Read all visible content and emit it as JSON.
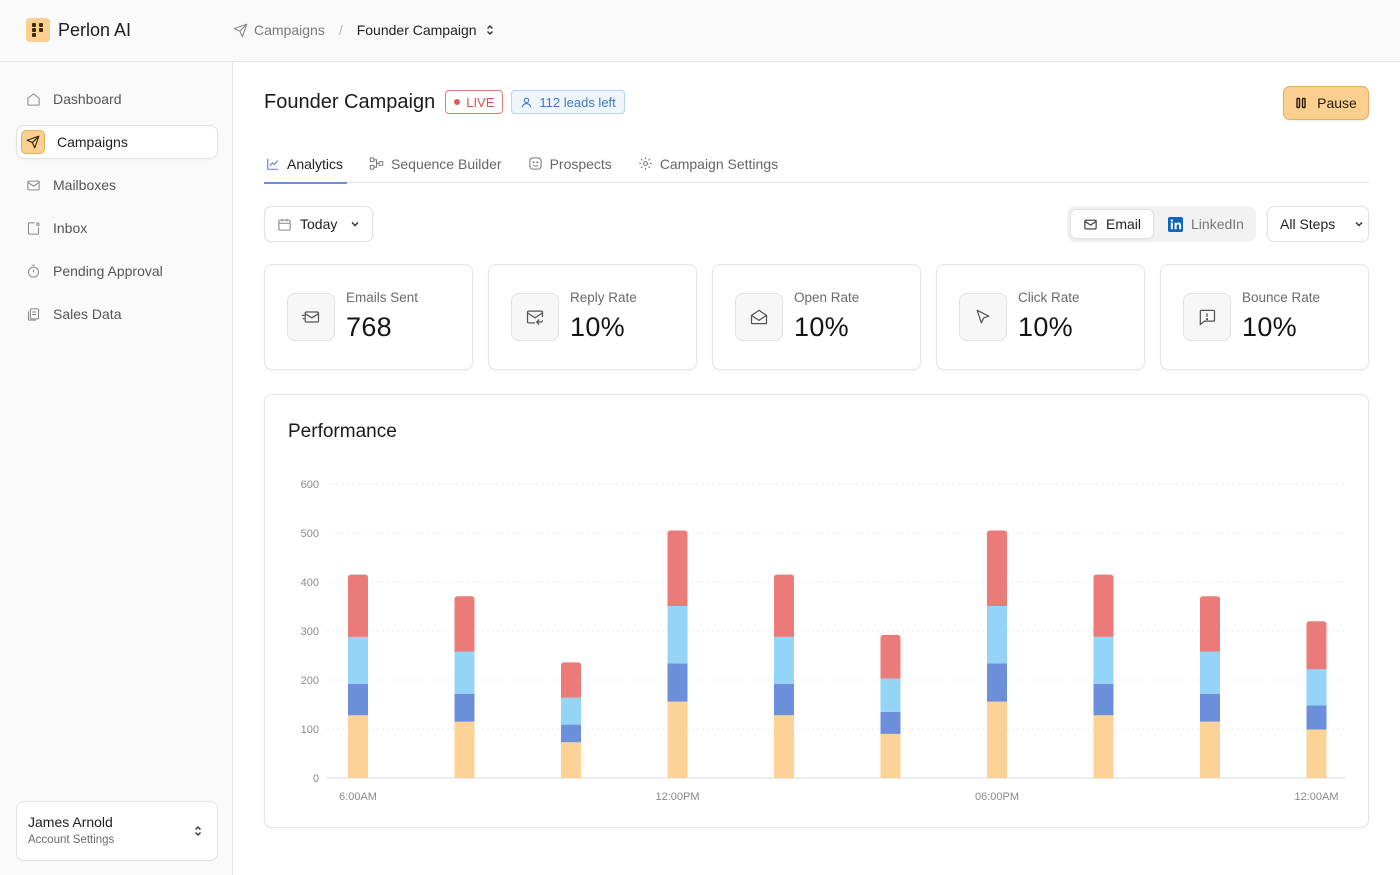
{
  "brand": {
    "name": "Perlon AI"
  },
  "breadcrumb": {
    "parent": "Campaigns",
    "separator": "/",
    "current": "Founder Campaign"
  },
  "sidebar": {
    "items": [
      {
        "label": "Dashboard",
        "icon": "home-icon"
      },
      {
        "label": "Campaigns",
        "icon": "send-icon",
        "active": true
      },
      {
        "label": "Mailboxes",
        "icon": "mail-icon"
      },
      {
        "label": "Inbox",
        "icon": "inbox-icon"
      },
      {
        "label": "Pending Approval",
        "icon": "timer-icon"
      },
      {
        "label": "Sales Data",
        "icon": "document-icon"
      }
    ],
    "account": {
      "name": "James Arnold",
      "subtitle": "Account Settings"
    }
  },
  "header": {
    "title": "Founder Campaign",
    "live_badge": "LIVE",
    "leads_badge": "112 leads left",
    "pause_label": "Pause"
  },
  "tabs": [
    {
      "label": "Analytics",
      "icon": "line-chart-icon",
      "active": true
    },
    {
      "label": "Sequence Builder",
      "icon": "flow-icon"
    },
    {
      "label": "Prospects",
      "icon": "smile-icon"
    },
    {
      "label": "Campaign Settings",
      "icon": "gear-icon"
    }
  ],
  "filters": {
    "date": "Today",
    "channels": [
      {
        "label": "Email",
        "active": true
      },
      {
        "label": "LinkedIn",
        "active": false
      }
    ],
    "steps": "All Steps"
  },
  "stats": [
    {
      "label": "Emails Sent",
      "value": "768",
      "icon": "mail-send-icon"
    },
    {
      "label": "Reply Rate",
      "value": "10%",
      "icon": "mail-reply-icon"
    },
    {
      "label": "Open Rate",
      "value": "10%",
      "icon": "mail-open-icon"
    },
    {
      "label": "Click Rate",
      "value": "10%",
      "icon": "cursor-icon"
    },
    {
      "label": "Bounce Rate",
      "value": "10%",
      "icon": "alert-message-icon"
    }
  ],
  "colors": {
    "accent": "#fbcf8f",
    "live": "#d9534f",
    "leads": "#3d78c2",
    "tab_underline": "#6c8ee0"
  },
  "chart_data": {
    "type": "bar",
    "stacked": true,
    "title": "Performance",
    "ylim": [
      0,
      600
    ],
    "yticks": [
      0,
      100,
      200,
      300,
      400,
      500,
      600
    ],
    "xtick_labels": [
      "6:00AM",
      "12:00PM",
      "06:00PM",
      "12:00AM"
    ],
    "xtick_index": [
      0,
      3,
      6,
      9
    ],
    "grid": true,
    "series": [
      {
        "color": "#fcd296",
        "values": [
          128,
          115,
          73,
          156,
          128,
          90,
          156,
          128,
          115,
          99
        ]
      },
      {
        "color": "#6b8fd8",
        "values": [
          64,
          57,
          36,
          78,
          64,
          45,
          78,
          64,
          57,
          49
        ]
      },
      {
        "color": "#93d4f7",
        "values": [
          96,
          86,
          55,
          117,
          96,
          68,
          117,
          96,
          86,
          74
        ]
      },
      {
        "color": "#ea7b79",
        "values": [
          127,
          113,
          72,
          154,
          127,
          89,
          154,
          127,
          113,
          98
        ]
      }
    ]
  }
}
